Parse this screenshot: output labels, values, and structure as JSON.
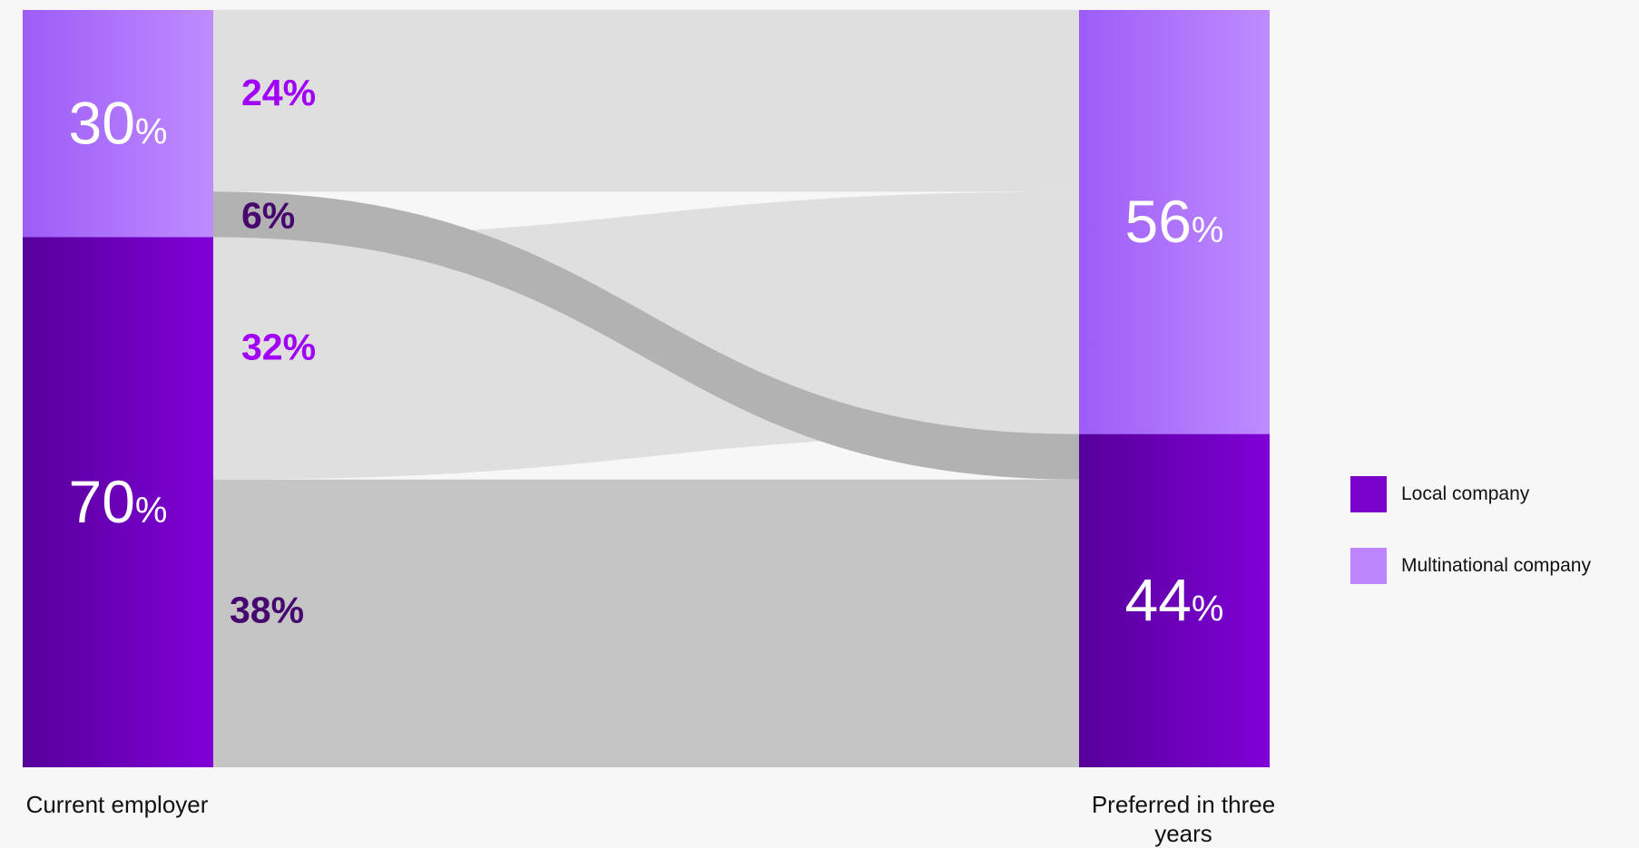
{
  "chart_data": {
    "type": "sankey",
    "source_label": "Current employer",
    "target_label": "Preferred in three years",
    "nodes": {
      "source": [
        {
          "id": "multinational",
          "value": 30,
          "label": "30",
          "pct": "%"
        },
        {
          "id": "local",
          "value": 70,
          "label": "70",
          "pct": "%"
        }
      ],
      "target": [
        {
          "id": "multinational",
          "value": 56,
          "label": "56",
          "pct": "%"
        },
        {
          "id": "local",
          "value": 44,
          "label": "44",
          "pct": "%"
        }
      ]
    },
    "flows": [
      {
        "from": "multinational",
        "to": "multinational",
        "value": 24,
        "label": "24%"
      },
      {
        "from": "multinational",
        "to": "local",
        "value": 6,
        "label": "6%"
      },
      {
        "from": "local",
        "to": "multinational",
        "value": 32,
        "label": "32%"
      },
      {
        "from": "local",
        "to": "local",
        "value": 38,
        "label": "38%"
      }
    ],
    "legend": [
      {
        "id": "local",
        "label": "Local company"
      },
      {
        "id": "multinational",
        "label": "Multinational company"
      }
    ],
    "legend_position": "right"
  },
  "colors": {
    "local_dark": "#56009a",
    "local_light": "#8000d6",
    "multi_dark": "#9d5cf7",
    "multi_light": "#bf8cff",
    "multi_text": "#a000f5",
    "local_text": "#46086e",
    "flow_multi_multi": "#dfdfdf",
    "flow_multi_local": "#b2b2b2",
    "flow_local_multi": "#dfdfdf",
    "flow_local_local": "#c5c5c5",
    "legend_local": "#7a00cc",
    "legend_multi": "#bd86ff"
  }
}
